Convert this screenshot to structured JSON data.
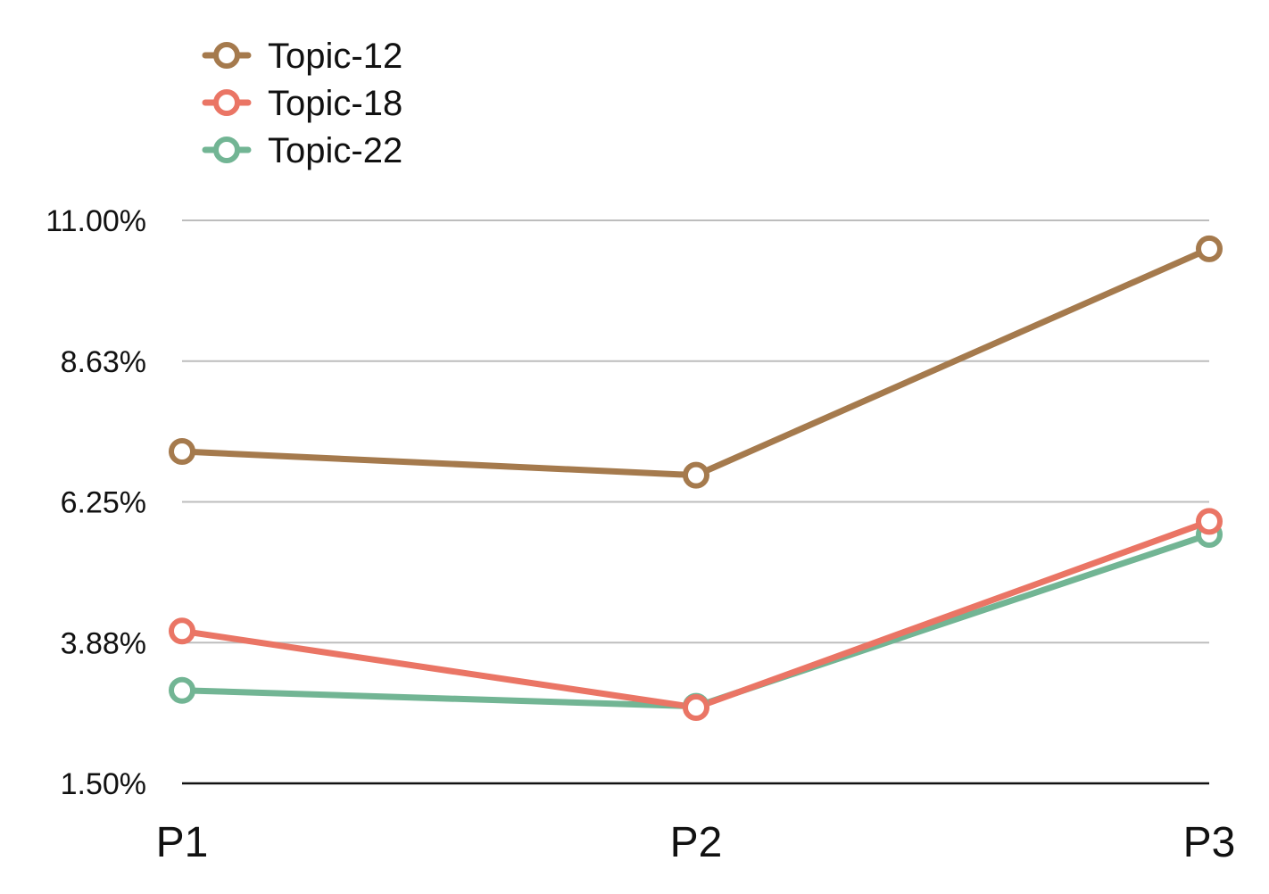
{
  "chart_data": {
    "type": "line",
    "title": "",
    "xlabel": "",
    "ylabel": "",
    "categories": [
      "P1",
      "P2",
      "P3"
    ],
    "y_ticks": [
      "1.50%",
      "3.88%",
      "6.25%",
      "8.63%",
      "11.00%"
    ],
    "ylim": [
      1.5,
      11.0
    ],
    "grid": true,
    "legend_position": "top-left",
    "series": [
      {
        "name": "Topic-12",
        "color": "#a57a4d",
        "values": [
          7.1,
          6.7,
          10.52
        ]
      },
      {
        "name": "Topic-18",
        "color": "#ea7565",
        "values": [
          4.07,
          2.78,
          5.92
        ]
      },
      {
        "name": "Topic-22",
        "color": "#72b594",
        "values": [
          3.07,
          2.8,
          5.7
        ]
      }
    ]
  }
}
